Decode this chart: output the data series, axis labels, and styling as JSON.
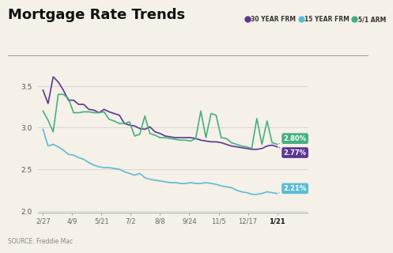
{
  "title": "Mortgage Rate Trends",
  "source": "SOURCE: Freddie Mac",
  "background_color": "#f5f0e8",
  "title_color": "#111111",
  "legend_labels": [
    "30 YEAR FRM",
    "15 YEAR FRM",
    "5/1 ARM"
  ],
  "legend_colors": [
    "#5c3591",
    "#5bbcd6",
    "#44b080"
  ],
  "line_colors": [
    "#5c3591",
    "#5bbcd6",
    "#44b080"
  ],
  "xtick_labels": [
    "2/27",
    "4/9",
    "5/21",
    "7/2",
    "8/8",
    "9/24",
    "11/5",
    "12/17",
    "1/21"
  ],
  "ylim": [
    1.98,
    3.72
  ],
  "yticks": [
    2.0,
    2.5,
    3.0,
    3.5
  ],
  "y30": [
    3.45,
    3.29,
    3.61,
    3.55,
    3.45,
    3.33,
    3.33,
    3.28,
    3.28,
    3.22,
    3.21,
    3.18,
    3.22,
    3.19,
    3.17,
    3.15,
    3.05,
    3.03,
    3.02,
    2.99,
    2.98,
    3.01,
    2.95,
    2.93,
    2.9,
    2.89,
    2.88,
    2.88,
    2.88,
    2.88,
    2.87,
    2.85,
    2.84,
    2.83,
    2.83,
    2.82,
    2.8,
    2.78,
    2.77,
    2.76,
    2.75,
    2.74,
    2.74,
    2.75,
    2.78,
    2.79,
    2.77
  ],
  "y15": [
    2.98,
    2.78,
    2.8,
    2.77,
    2.73,
    2.68,
    2.67,
    2.64,
    2.62,
    2.58,
    2.55,
    2.53,
    2.52,
    2.52,
    2.51,
    2.5,
    2.47,
    2.45,
    2.43,
    2.45,
    2.4,
    2.38,
    2.37,
    2.36,
    2.35,
    2.34,
    2.34,
    2.33,
    2.33,
    2.34,
    2.33,
    2.33,
    2.34,
    2.33,
    2.32,
    2.3,
    2.29,
    2.28,
    2.25,
    2.23,
    2.22,
    2.2,
    2.2,
    2.21,
    2.23,
    2.22,
    2.21
  ],
  "y51": [
    3.2,
    3.09,
    2.95,
    3.4,
    3.4,
    3.35,
    3.18,
    3.18,
    3.19,
    3.19,
    3.18,
    3.18,
    3.19,
    3.1,
    3.08,
    3.05,
    3.05,
    3.07,
    2.9,
    2.92,
    3.14,
    2.93,
    2.91,
    2.88,
    2.88,
    2.87,
    2.86,
    2.85,
    2.85,
    2.84,
    2.87,
    3.2,
    2.88,
    3.17,
    3.15,
    2.88,
    2.87,
    2.82,
    2.8,
    2.78,
    2.77,
    2.75,
    3.11,
    2.8,
    3.08,
    2.82,
    2.8
  ],
  "end_labels": [
    {
      "text": "2.80%",
      "color": "#44b080",
      "y": 2.8,
      "yoff": 0.07
    },
    {
      "text": "2.77%",
      "color": "#5c3591",
      "y": 2.77,
      "yoff": -0.07
    },
    {
      "text": "2.21%",
      "color": "#5bbcd6",
      "y": 2.21,
      "yoff": 0.06
    }
  ]
}
